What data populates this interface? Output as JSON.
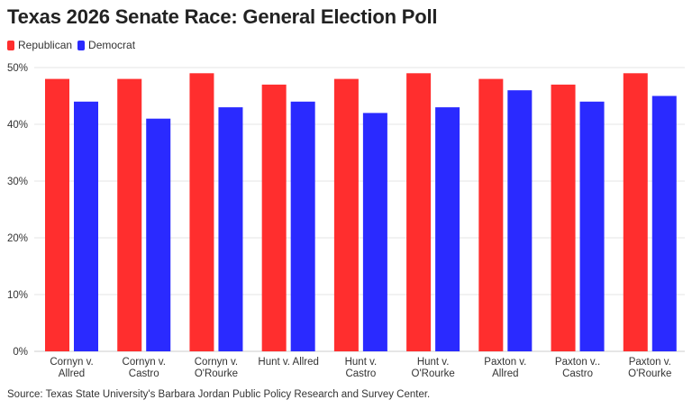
{
  "title": "Texas 2026 Senate Race: General Election Poll",
  "source": "Source: Texas State University's Barbara Jordan Public Policy Research and Survey Center.",
  "colors": {
    "republican": "#ff2e2e",
    "democrat": "#2a2aff",
    "grid": "#e6e6e6",
    "axis_text": "#333333"
  },
  "chart_data": {
    "type": "bar",
    "categories": [
      [
        "Cornyn v.",
        "Allred"
      ],
      [
        "Cornyn v.",
        "Castro"
      ],
      [
        "Cornyn v.",
        "O'Rourke"
      ],
      [
        "Hunt v. Allred"
      ],
      [
        "Hunt v.",
        "Castro"
      ],
      [
        "Hunt v.",
        "O'Rourke"
      ],
      [
        "Paxton v.",
        "Allred"
      ],
      [
        "Paxton v..",
        "Castro"
      ],
      [
        "Paxton v.",
        "O'Rourke"
      ]
    ],
    "series": [
      {
        "name": "Republican",
        "color": "#ff2e2e",
        "values": [
          48,
          48,
          49,
          47,
          48,
          49,
          48,
          47,
          49
        ]
      },
      {
        "name": "Democrat",
        "color": "#2a2aff",
        "values": [
          44,
          41,
          43,
          44,
          42,
          43,
          46,
          44,
          45
        ]
      }
    ],
    "yticks": [
      "0%",
      "10%",
      "20%",
      "30%",
      "40%",
      "50%"
    ],
    "ytick_values": [
      0,
      10,
      20,
      30,
      40,
      50
    ],
    "ylim": [
      0,
      50
    ],
    "grid": true,
    "legend_position": "top-left"
  }
}
